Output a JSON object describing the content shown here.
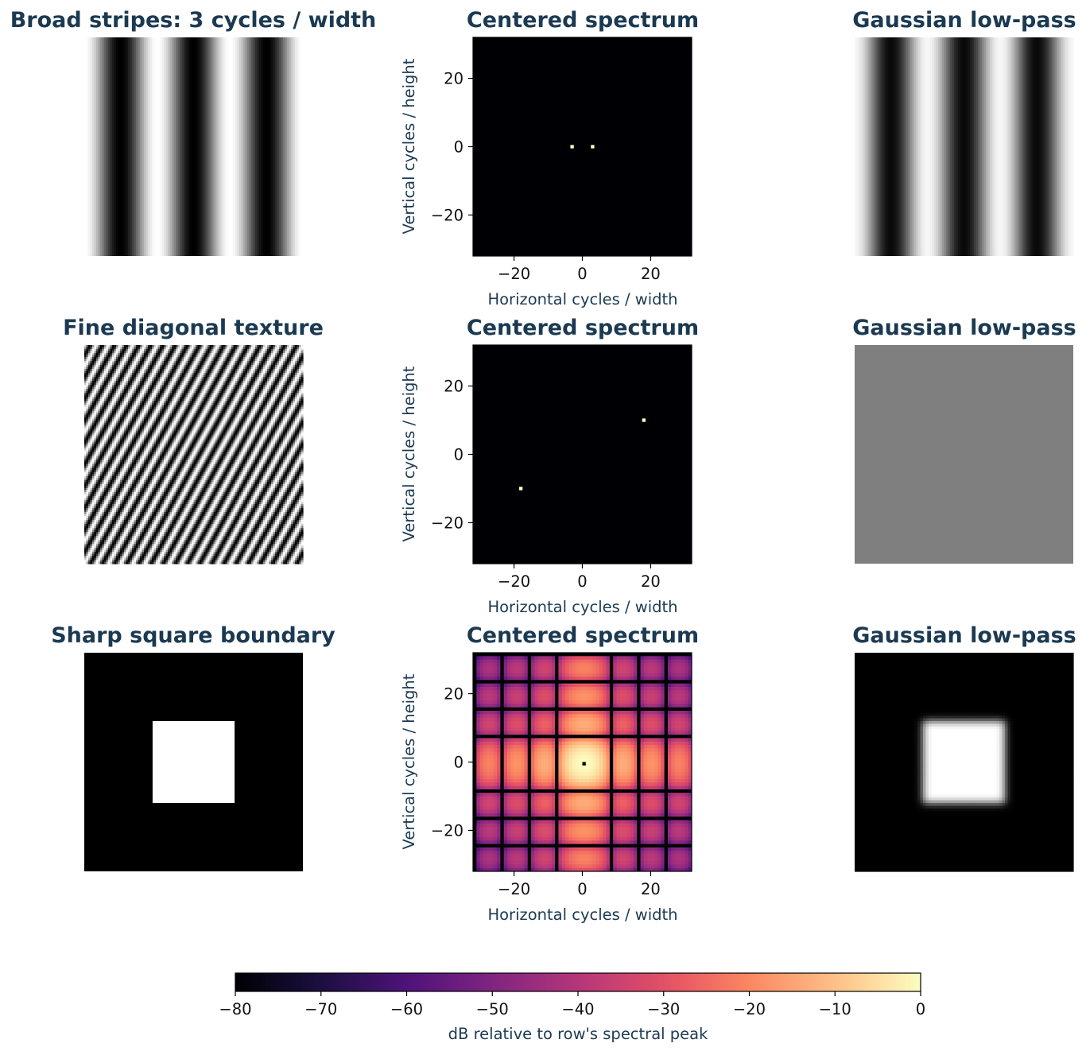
{
  "colors": {
    "title": "#1b3a52",
    "axis_label": "#1b3a52",
    "tick_label": "#111111",
    "colormap": "magma"
  },
  "chart_data": {
    "type": "heatmap",
    "layout": "3 rows x 3 columns: input image, centered spectrum, Gaussian low-pass output",
    "spectrum_axes": {
      "xlabel": "Horizontal cycles / width",
      "ylabel": "Vertical cycles / height",
      "xlim": [
        -32,
        32
      ],
      "ylim": [
        -32,
        32
      ],
      "xticks": [
        -20,
        0,
        20
      ],
      "yticks": [
        20,
        0,
        -20
      ]
    },
    "rows": [
      {
        "input_title": "Broad stripes: 3 cycles / width",
        "input_pattern": "vertical cosine stripes",
        "input_cycles_per_width": 3,
        "spectrum_title": "Centered spectrum",
        "spectrum_peaks": [
          [
            -3,
            0
          ],
          [
            3,
            0
          ]
        ],
        "spectrum_peak_db": 0,
        "spectrum_background_db": -80,
        "filtered_title": "Gaussian low-pass",
        "filtered_result": "stripes preserved"
      },
      {
        "input_title": "Fine diagonal texture",
        "input_pattern": "diagonal cosine stripes",
        "input_frequency": [
          18,
          10
        ],
        "spectrum_title": "Centered spectrum",
        "spectrum_peaks": [
          [
            18,
            10
          ],
          [
            -18,
            -10
          ]
        ],
        "spectrum_peak_db": 0,
        "spectrum_background_db": -80,
        "filtered_title": "Gaussian low-pass",
        "filtered_result": "uniform mid-gray"
      },
      {
        "input_title": "Sharp square boundary",
        "input_pattern": "white square on black",
        "input_square_extent_fraction": [
          0.3125,
          0.6875
        ],
        "spectrum_title": "Centered spectrum",
        "spectrum_pattern": "2-D sinc magnitude, nulls every 8 cycles (cross centered at 0,0)",
        "spectrum_null_spacing": 8,
        "spectrum_peak_db": 0,
        "filtered_title": "Gaussian low-pass",
        "filtered_result": "blurred square"
      }
    ],
    "colorbar": {
      "label": "dB relative to row's spectral peak",
      "range": [
        -80,
        0
      ],
      "ticks": [
        -80,
        -70,
        -60,
        -50,
        -40,
        -30,
        -20,
        -10,
        0
      ],
      "colormap": "magma"
    }
  }
}
